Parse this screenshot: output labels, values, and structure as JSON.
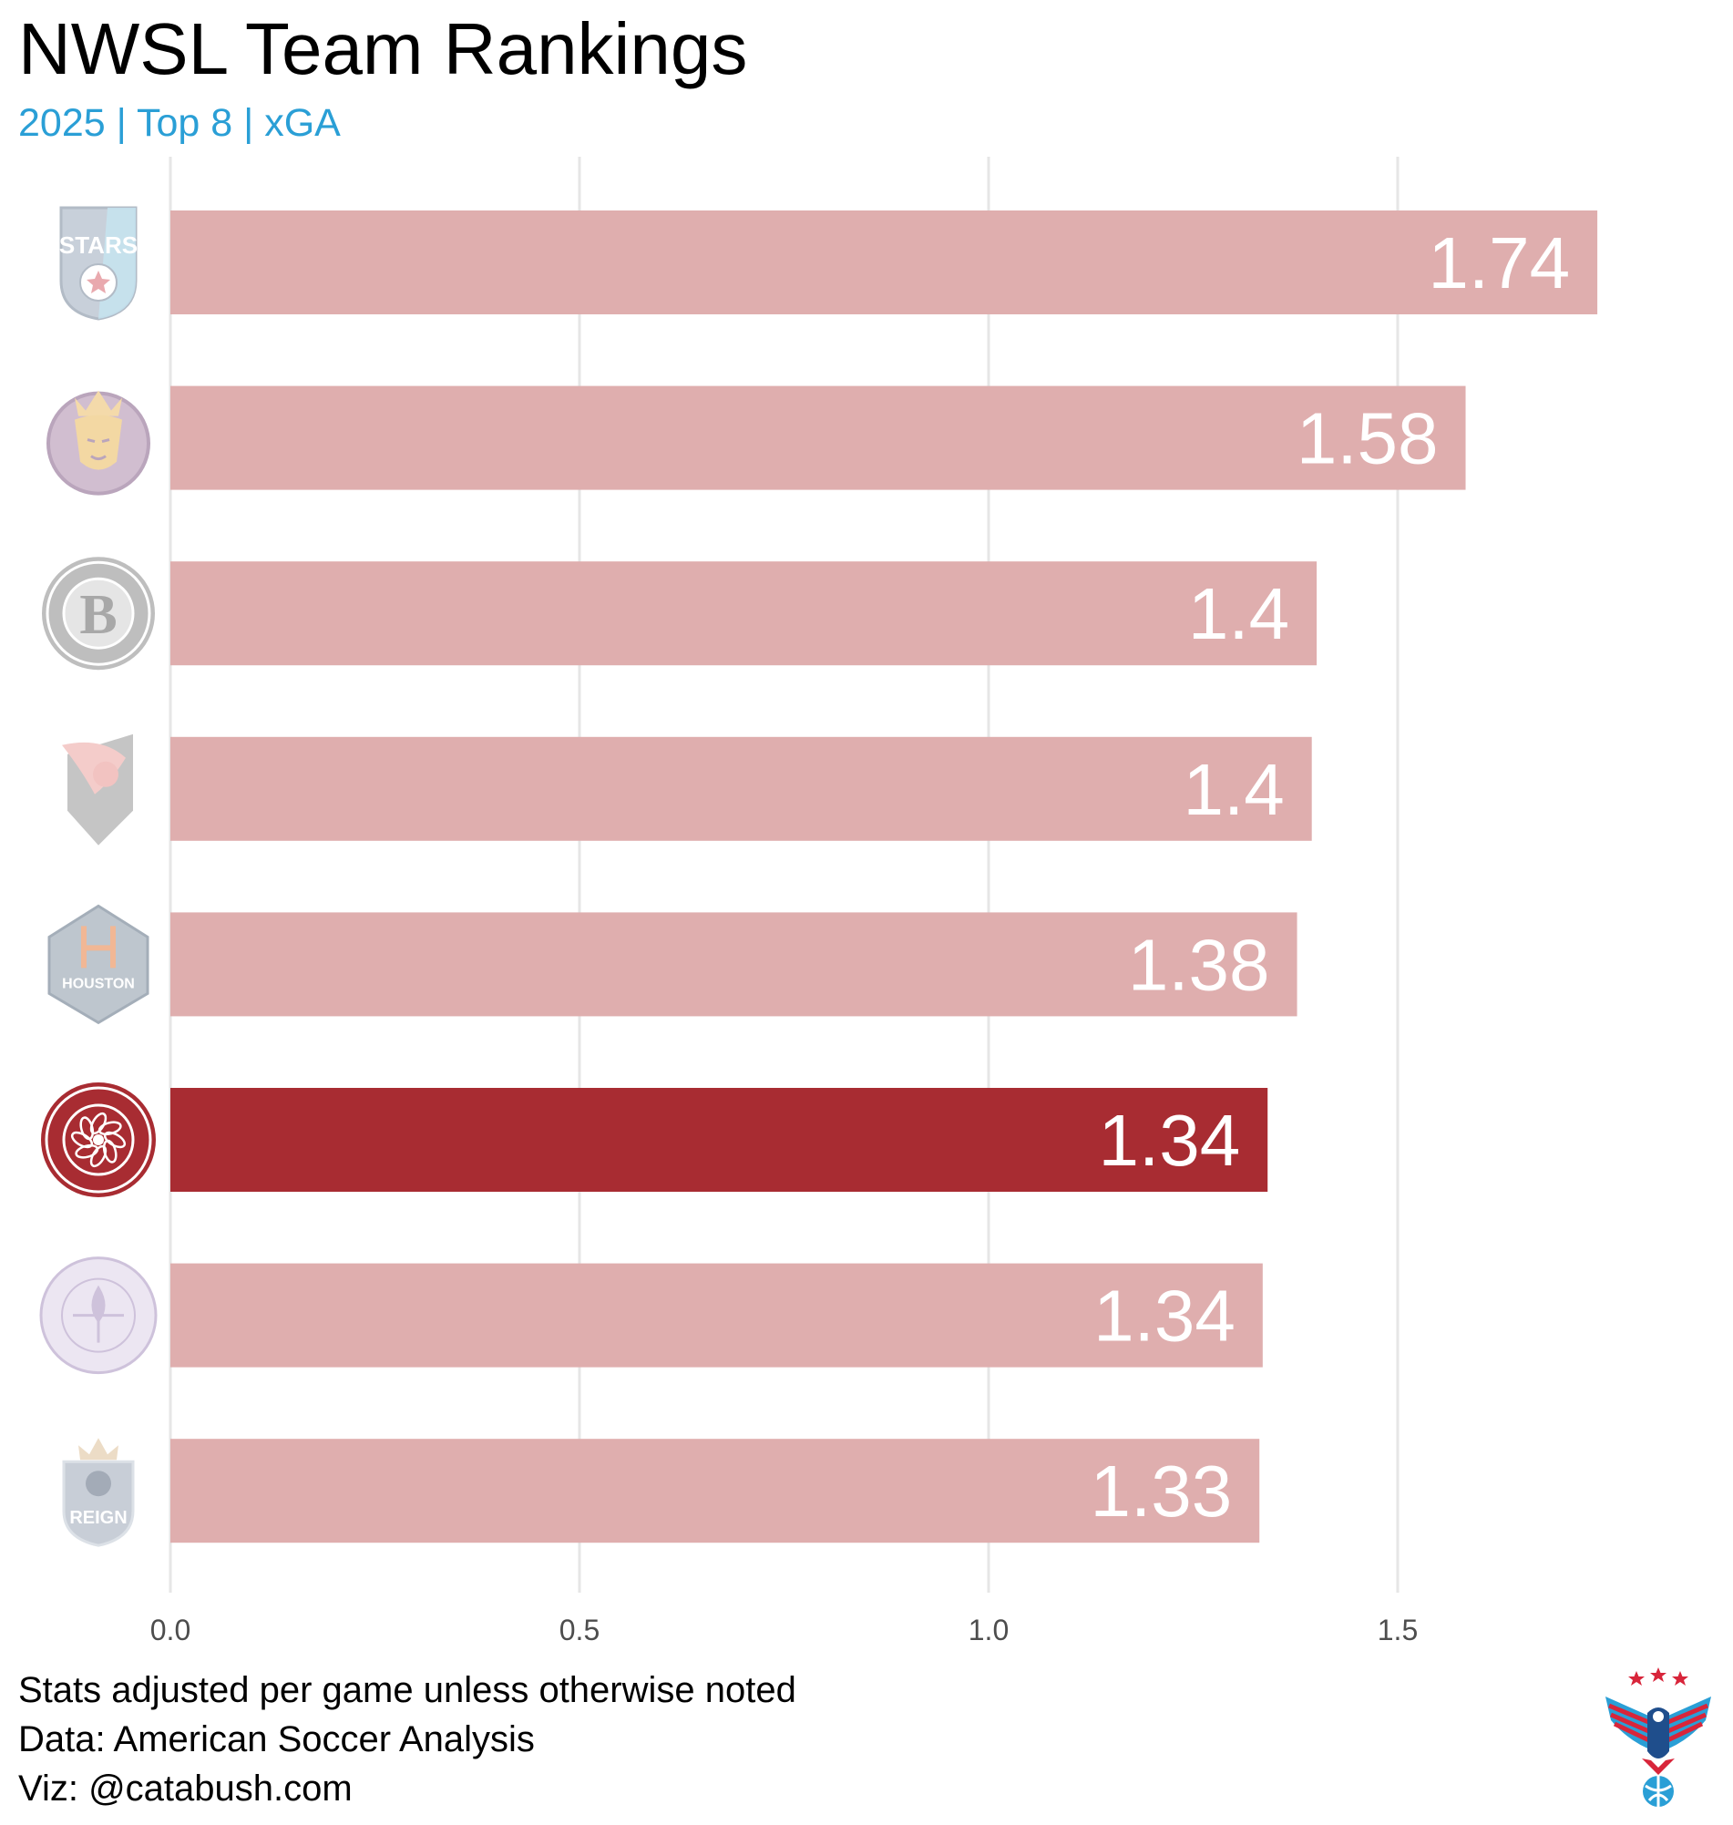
{
  "header": {
    "title": "NWSL Team Rankings",
    "subtitle": "2025 | Top 8 | xGA"
  },
  "footer": {
    "captions": [
      "Stats adjusted per game unless otherwise noted",
      "Data: American Soccer Analysis",
      "Viz: @catabush.com"
    ]
  },
  "colors": {
    "highlight_bar": "#a82c32",
    "muted_bar": "#dfaeae",
    "subtitle": "#2a9fd6",
    "grid": "#e6e6e6",
    "value_label": "#ffffff"
  },
  "chart_data": {
    "type": "bar",
    "orientation": "horizontal",
    "categories": [
      "Chicago Stars FC",
      "Utah Royals",
      "Bay FC",
      "Angel City FC",
      "Houston Dash",
      "Portland Thorns",
      "Racing Louisville FC",
      "Seattle Reign FC"
    ],
    "category_label_icons": [
      "chicago-stars-logo",
      "utah-royals-logo",
      "bay-fc-logo",
      "angel-city-logo",
      "houston-dash-logo",
      "portland-thorns-logo",
      "racing-louisville-logo",
      "seattle-reign-logo"
    ],
    "values": [
      1.744,
      1.583,
      1.401,
      1.395,
      1.377,
      1.341,
      1.335,
      1.331
    ],
    "value_labels": [
      "1.74",
      "1.58",
      "1.4",
      "1.4",
      "1.38",
      "1.34",
      "1.34",
      "1.33"
    ],
    "highlight_index": 5,
    "xlim": [
      0,
      1.78
    ],
    "x_ticks": [
      0,
      0.5,
      1,
      1.5
    ],
    "x_tick_labels": [
      "0.0",
      "0.5",
      "1.0",
      "1.5"
    ],
    "grid": true,
    "legend": "none",
    "xlabel": "",
    "ylabel": ""
  }
}
